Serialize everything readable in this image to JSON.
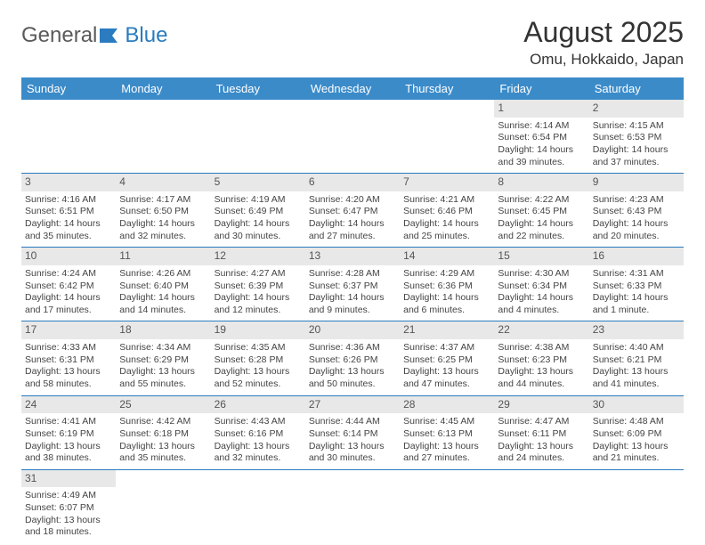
{
  "brand": {
    "part1": "General",
    "part2": "Blue"
  },
  "title": "August 2025",
  "location": "Omu, Hokkaido, Japan",
  "colors": {
    "header_bg": "#3b8bc9",
    "header_fg": "#ffffff",
    "rule": "#2a7bbf",
    "dayrow_bg": "#e8e8e8",
    "text": "#444444"
  },
  "day_names": [
    "Sunday",
    "Monday",
    "Tuesday",
    "Wednesday",
    "Thursday",
    "Friday",
    "Saturday"
  ],
  "weeks": [
    [
      null,
      null,
      null,
      null,
      null,
      {
        "n": "1",
        "sr": "Sunrise: 4:14 AM",
        "ss": "Sunset: 6:54 PM",
        "dl": "Daylight: 14 hours and 39 minutes."
      },
      {
        "n": "2",
        "sr": "Sunrise: 4:15 AM",
        "ss": "Sunset: 6:53 PM",
        "dl": "Daylight: 14 hours and 37 minutes."
      }
    ],
    [
      {
        "n": "3",
        "sr": "Sunrise: 4:16 AM",
        "ss": "Sunset: 6:51 PM",
        "dl": "Daylight: 14 hours and 35 minutes."
      },
      {
        "n": "4",
        "sr": "Sunrise: 4:17 AM",
        "ss": "Sunset: 6:50 PM",
        "dl": "Daylight: 14 hours and 32 minutes."
      },
      {
        "n": "5",
        "sr": "Sunrise: 4:19 AM",
        "ss": "Sunset: 6:49 PM",
        "dl": "Daylight: 14 hours and 30 minutes."
      },
      {
        "n": "6",
        "sr": "Sunrise: 4:20 AM",
        "ss": "Sunset: 6:47 PM",
        "dl": "Daylight: 14 hours and 27 minutes."
      },
      {
        "n": "7",
        "sr": "Sunrise: 4:21 AM",
        "ss": "Sunset: 6:46 PM",
        "dl": "Daylight: 14 hours and 25 minutes."
      },
      {
        "n": "8",
        "sr": "Sunrise: 4:22 AM",
        "ss": "Sunset: 6:45 PM",
        "dl": "Daylight: 14 hours and 22 minutes."
      },
      {
        "n": "9",
        "sr": "Sunrise: 4:23 AM",
        "ss": "Sunset: 6:43 PM",
        "dl": "Daylight: 14 hours and 20 minutes."
      }
    ],
    [
      {
        "n": "10",
        "sr": "Sunrise: 4:24 AM",
        "ss": "Sunset: 6:42 PM",
        "dl": "Daylight: 14 hours and 17 minutes."
      },
      {
        "n": "11",
        "sr": "Sunrise: 4:26 AM",
        "ss": "Sunset: 6:40 PM",
        "dl": "Daylight: 14 hours and 14 minutes."
      },
      {
        "n": "12",
        "sr": "Sunrise: 4:27 AM",
        "ss": "Sunset: 6:39 PM",
        "dl": "Daylight: 14 hours and 12 minutes."
      },
      {
        "n": "13",
        "sr": "Sunrise: 4:28 AM",
        "ss": "Sunset: 6:37 PM",
        "dl": "Daylight: 14 hours and 9 minutes."
      },
      {
        "n": "14",
        "sr": "Sunrise: 4:29 AM",
        "ss": "Sunset: 6:36 PM",
        "dl": "Daylight: 14 hours and 6 minutes."
      },
      {
        "n": "15",
        "sr": "Sunrise: 4:30 AM",
        "ss": "Sunset: 6:34 PM",
        "dl": "Daylight: 14 hours and 4 minutes."
      },
      {
        "n": "16",
        "sr": "Sunrise: 4:31 AM",
        "ss": "Sunset: 6:33 PM",
        "dl": "Daylight: 14 hours and 1 minute."
      }
    ],
    [
      {
        "n": "17",
        "sr": "Sunrise: 4:33 AM",
        "ss": "Sunset: 6:31 PM",
        "dl": "Daylight: 13 hours and 58 minutes."
      },
      {
        "n": "18",
        "sr": "Sunrise: 4:34 AM",
        "ss": "Sunset: 6:29 PM",
        "dl": "Daylight: 13 hours and 55 minutes."
      },
      {
        "n": "19",
        "sr": "Sunrise: 4:35 AM",
        "ss": "Sunset: 6:28 PM",
        "dl": "Daylight: 13 hours and 52 minutes."
      },
      {
        "n": "20",
        "sr": "Sunrise: 4:36 AM",
        "ss": "Sunset: 6:26 PM",
        "dl": "Daylight: 13 hours and 50 minutes."
      },
      {
        "n": "21",
        "sr": "Sunrise: 4:37 AM",
        "ss": "Sunset: 6:25 PM",
        "dl": "Daylight: 13 hours and 47 minutes."
      },
      {
        "n": "22",
        "sr": "Sunrise: 4:38 AM",
        "ss": "Sunset: 6:23 PM",
        "dl": "Daylight: 13 hours and 44 minutes."
      },
      {
        "n": "23",
        "sr": "Sunrise: 4:40 AM",
        "ss": "Sunset: 6:21 PM",
        "dl": "Daylight: 13 hours and 41 minutes."
      }
    ],
    [
      {
        "n": "24",
        "sr": "Sunrise: 4:41 AM",
        "ss": "Sunset: 6:19 PM",
        "dl": "Daylight: 13 hours and 38 minutes."
      },
      {
        "n": "25",
        "sr": "Sunrise: 4:42 AM",
        "ss": "Sunset: 6:18 PM",
        "dl": "Daylight: 13 hours and 35 minutes."
      },
      {
        "n": "26",
        "sr": "Sunrise: 4:43 AM",
        "ss": "Sunset: 6:16 PM",
        "dl": "Daylight: 13 hours and 32 minutes."
      },
      {
        "n": "27",
        "sr": "Sunrise: 4:44 AM",
        "ss": "Sunset: 6:14 PM",
        "dl": "Daylight: 13 hours and 30 minutes."
      },
      {
        "n": "28",
        "sr": "Sunrise: 4:45 AM",
        "ss": "Sunset: 6:13 PM",
        "dl": "Daylight: 13 hours and 27 minutes."
      },
      {
        "n": "29",
        "sr": "Sunrise: 4:47 AM",
        "ss": "Sunset: 6:11 PM",
        "dl": "Daylight: 13 hours and 24 minutes."
      },
      {
        "n": "30",
        "sr": "Sunrise: 4:48 AM",
        "ss": "Sunset: 6:09 PM",
        "dl": "Daylight: 13 hours and 21 minutes."
      }
    ],
    [
      {
        "n": "31",
        "sr": "Sunrise: 4:49 AM",
        "ss": "Sunset: 6:07 PM",
        "dl": "Daylight: 13 hours and 18 minutes."
      },
      null,
      null,
      null,
      null,
      null,
      null
    ]
  ]
}
